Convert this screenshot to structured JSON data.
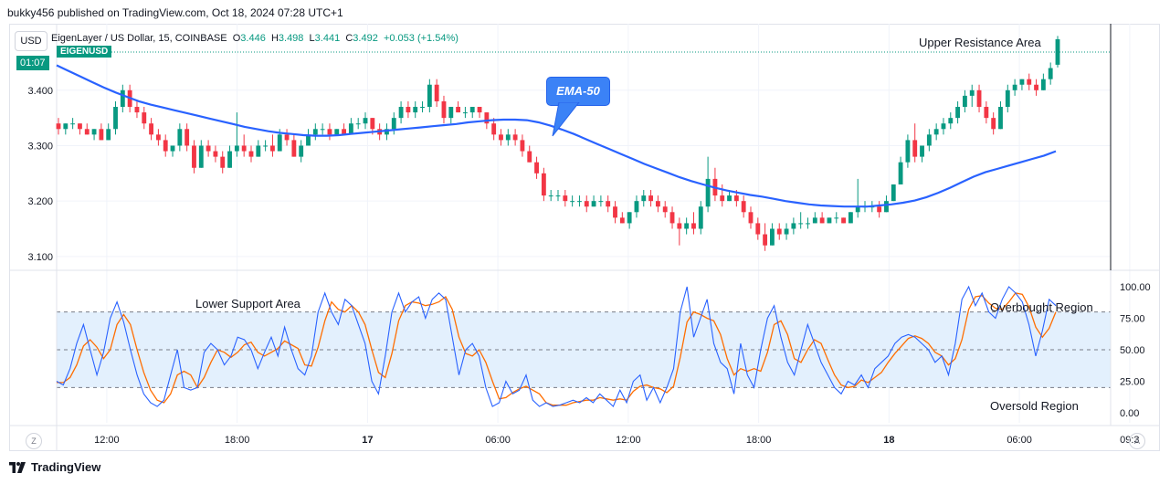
{
  "publisher": "bukky456 published on TradingView.com, Oct 18, 2024 07:28 UTC+1",
  "currency_button": "USD",
  "legend": {
    "title": "EigenLayer / US Dollar, 15, COINBASE",
    "o_label": "O",
    "o": "3.446",
    "h_label": "H",
    "h": "3.498",
    "l_label": "L",
    "l": "3.441",
    "c_label": "C",
    "c": "3.492",
    "change": "+0.053 (+1.54%)"
  },
  "symbol_tag": "EIGENUSD",
  "countdown_tag": "01:07",
  "annotations": {
    "upper_resistance": "Upper Resistance Area",
    "lower_support": "Lower Support Area",
    "overbought": "Overbought Region",
    "oversold": "Oversold Region",
    "ema_callout": "EMA-50"
  },
  "footer_brand": "TradingView",
  "z_button": "Z",
  "a_button": "A",
  "colors": {
    "up": "#089981",
    "down": "#f23645",
    "ema": "#2962ff",
    "stoch_k": "#2962ff",
    "stoch_d": "#ff6d00",
    "band": "#e3f0fd"
  },
  "chart_data": [
    {
      "type": "candlestick",
      "symbol": "EIGENUSD",
      "timeframe": "15",
      "ylim": [
        3.075,
        3.52
      ],
      "y_ticks": [
        "3.400",
        "3.300",
        "3.200",
        "3.100"
      ],
      "y_tick_values": [
        3.4,
        3.3,
        3.2,
        3.1
      ],
      "x_ticks": [
        "12:00",
        "18:00",
        "17",
        "06:00",
        "12:00",
        "18:00",
        "18",
        "06:00",
        "09:3"
      ],
      "ohlc": [
        [
          3.34,
          3.35,
          3.32,
          3.33
        ],
        [
          3.33,
          3.34,
          3.32,
          3.34
        ],
        [
          3.34,
          3.35,
          3.33,
          3.34
        ],
        [
          3.34,
          3.34,
          3.32,
          3.33
        ],
        [
          3.33,
          3.34,
          3.32,
          3.32
        ],
        [
          3.32,
          3.33,
          3.31,
          3.33
        ],
        [
          3.33,
          3.34,
          3.31,
          3.31
        ],
        [
          3.31,
          3.34,
          3.31,
          3.33
        ],
        [
          3.33,
          3.38,
          3.32,
          3.37
        ],
        [
          3.37,
          3.41,
          3.36,
          3.4
        ],
        [
          3.4,
          3.41,
          3.36,
          3.37
        ],
        [
          3.37,
          3.38,
          3.35,
          3.36
        ],
        [
          3.36,
          3.37,
          3.33,
          3.34
        ],
        [
          3.34,
          3.35,
          3.31,
          3.32
        ],
        [
          3.32,
          3.33,
          3.3,
          3.31
        ],
        [
          3.31,
          3.32,
          3.28,
          3.29
        ],
        [
          3.29,
          3.3,
          3.28,
          3.3
        ],
        [
          3.3,
          3.34,
          3.29,
          3.33
        ],
        [
          3.33,
          3.34,
          3.29,
          3.3
        ],
        [
          3.3,
          3.31,
          3.25,
          3.26
        ],
        [
          3.26,
          3.31,
          3.26,
          3.3
        ],
        [
          3.3,
          3.31,
          3.28,
          3.29
        ],
        [
          3.29,
          3.3,
          3.27,
          3.28
        ],
        [
          3.28,
          3.29,
          3.25,
          3.26
        ],
        [
          3.26,
          3.3,
          3.26,
          3.29
        ],
        [
          3.29,
          3.36,
          3.28,
          3.3
        ],
        [
          3.3,
          3.32,
          3.28,
          3.29
        ],
        [
          3.29,
          3.3,
          3.27,
          3.28
        ],
        [
          3.28,
          3.31,
          3.28,
          3.3
        ],
        [
          3.3,
          3.31,
          3.29,
          3.3
        ],
        [
          3.3,
          3.32,
          3.28,
          3.29
        ],
        [
          3.29,
          3.33,
          3.29,
          3.32
        ],
        [
          3.32,
          3.33,
          3.3,
          3.31
        ],
        [
          3.31,
          3.32,
          3.28,
          3.28
        ],
        [
          3.28,
          3.31,
          3.27,
          3.3
        ],
        [
          3.3,
          3.33,
          3.3,
          3.32
        ],
        [
          3.32,
          3.34,
          3.31,
          3.33
        ],
        [
          3.33,
          3.34,
          3.32,
          3.33
        ],
        [
          3.33,
          3.34,
          3.31,
          3.32
        ],
        [
          3.32,
          3.33,
          3.32,
          3.33
        ],
        [
          3.33,
          3.34,
          3.32,
          3.32
        ],
        [
          3.32,
          3.35,
          3.32,
          3.34
        ],
        [
          3.34,
          3.35,
          3.33,
          3.34
        ],
        [
          3.34,
          3.36,
          3.33,
          3.35
        ],
        [
          3.35,
          3.35,
          3.32,
          3.33
        ],
        [
          3.33,
          3.34,
          3.31,
          3.32
        ],
        [
          3.32,
          3.34,
          3.31,
          3.33
        ],
        [
          3.33,
          3.36,
          3.32,
          3.35
        ],
        [
          3.35,
          3.38,
          3.34,
          3.37
        ],
        [
          3.37,
          3.38,
          3.35,
          3.36
        ],
        [
          3.36,
          3.38,
          3.35,
          3.37
        ],
        [
          3.37,
          3.38,
          3.36,
          3.37
        ],
        [
          3.37,
          3.42,
          3.36,
          3.41
        ],
        [
          3.41,
          3.42,
          3.37,
          3.38
        ],
        [
          3.38,
          3.39,
          3.34,
          3.35
        ],
        [
          3.35,
          3.37,
          3.34,
          3.37
        ],
        [
          3.37,
          3.38,
          3.36,
          3.36
        ],
        [
          3.36,
          3.37,
          3.35,
          3.36
        ],
        [
          3.36,
          3.37,
          3.35,
          3.37
        ],
        [
          3.37,
          3.37,
          3.35,
          3.36
        ],
        [
          3.36,
          3.36,
          3.33,
          3.34
        ],
        [
          3.34,
          3.35,
          3.31,
          3.32
        ],
        [
          3.32,
          3.33,
          3.3,
          3.31
        ],
        [
          3.31,
          3.33,
          3.3,
          3.32
        ],
        [
          3.32,
          3.33,
          3.3,
          3.31
        ],
        [
          3.31,
          3.32,
          3.28,
          3.29
        ],
        [
          3.29,
          3.3,
          3.27,
          3.27
        ],
        [
          3.27,
          3.28,
          3.24,
          3.25
        ],
        [
          3.25,
          3.26,
          3.2,
          3.21
        ],
        [
          3.21,
          3.22,
          3.2,
          3.21
        ],
        [
          3.21,
          3.22,
          3.2,
          3.21
        ],
        [
          3.21,
          3.22,
          3.19,
          3.2
        ],
        [
          3.2,
          3.21,
          3.19,
          3.2
        ],
        [
          3.2,
          3.21,
          3.19,
          3.2
        ],
        [
          3.2,
          3.21,
          3.18,
          3.19
        ],
        [
          3.19,
          3.21,
          3.19,
          3.2
        ],
        [
          3.2,
          3.21,
          3.19,
          3.2
        ],
        [
          3.2,
          3.21,
          3.18,
          3.19
        ],
        [
          3.19,
          3.2,
          3.16,
          3.17
        ],
        [
          3.17,
          3.18,
          3.16,
          3.16
        ],
        [
          3.16,
          3.18,
          3.15,
          3.18
        ],
        [
          3.18,
          3.21,
          3.17,
          3.2
        ],
        [
          3.2,
          3.22,
          3.19,
          3.21
        ],
        [
          3.21,
          3.22,
          3.19,
          3.2
        ],
        [
          3.2,
          3.21,
          3.18,
          3.19
        ],
        [
          3.19,
          3.2,
          3.17,
          3.18
        ],
        [
          3.18,
          3.19,
          3.15,
          3.16
        ],
        [
          3.16,
          3.17,
          3.12,
          3.15
        ],
        [
          3.15,
          3.17,
          3.14,
          3.16
        ],
        [
          3.16,
          3.18,
          3.14,
          3.15
        ],
        [
          3.15,
          3.2,
          3.14,
          3.19
        ],
        [
          3.19,
          3.28,
          3.18,
          3.24
        ],
        [
          3.24,
          3.26,
          3.2,
          3.21
        ],
        [
          3.21,
          3.23,
          3.19,
          3.2
        ],
        [
          3.2,
          3.22,
          3.2,
          3.21
        ],
        [
          3.21,
          3.22,
          3.19,
          3.2
        ],
        [
          3.2,
          3.21,
          3.17,
          3.18
        ],
        [
          3.18,
          3.19,
          3.15,
          3.16
        ],
        [
          3.16,
          3.17,
          3.13,
          3.14
        ],
        [
          3.14,
          3.16,
          3.11,
          3.12
        ],
        [
          3.12,
          3.16,
          3.12,
          3.15
        ],
        [
          3.15,
          3.16,
          3.13,
          3.14
        ],
        [
          3.14,
          3.16,
          3.13,
          3.15
        ],
        [
          3.15,
          3.17,
          3.14,
          3.16
        ],
        [
          3.16,
          3.18,
          3.15,
          3.16
        ],
        [
          3.16,
          3.17,
          3.15,
          3.16
        ],
        [
          3.16,
          3.18,
          3.16,
          3.17
        ],
        [
          3.17,
          3.18,
          3.16,
          3.16
        ],
        [
          3.16,
          3.17,
          3.16,
          3.17
        ],
        [
          3.17,
          3.18,
          3.16,
          3.17
        ],
        [
          3.17,
          3.17,
          3.16,
          3.16
        ],
        [
          3.16,
          3.18,
          3.16,
          3.18
        ],
        [
          3.18,
          3.24,
          3.17,
          3.19
        ],
        [
          3.19,
          3.2,
          3.18,
          3.19
        ],
        [
          3.19,
          3.2,
          3.18,
          3.19
        ],
        [
          3.19,
          3.2,
          3.17,
          3.18
        ],
        [
          3.18,
          3.21,
          3.18,
          3.2
        ],
        [
          3.2,
          3.23,
          3.2,
          3.23
        ],
        [
          3.23,
          3.28,
          3.23,
          3.27
        ],
        [
          3.27,
          3.32,
          3.26,
          3.31
        ],
        [
          3.31,
          3.34,
          3.27,
          3.28
        ],
        [
          3.28,
          3.3,
          3.27,
          3.3
        ],
        [
          3.3,
          3.33,
          3.29,
          3.32
        ],
        [
          3.32,
          3.34,
          3.31,
          3.33
        ],
        [
          3.33,
          3.35,
          3.32,
          3.34
        ],
        [
          3.34,
          3.36,
          3.33,
          3.35
        ],
        [
          3.35,
          3.38,
          3.34,
          3.37
        ],
        [
          3.37,
          3.4,
          3.36,
          3.39
        ],
        [
          3.39,
          3.41,
          3.37,
          3.4
        ],
        [
          3.4,
          3.41,
          3.36,
          3.37
        ],
        [
          3.37,
          3.38,
          3.34,
          3.35
        ],
        [
          3.35,
          3.36,
          3.32,
          3.33
        ],
        [
          3.33,
          3.38,
          3.33,
          3.37
        ],
        [
          3.37,
          3.41,
          3.36,
          3.4
        ],
        [
          3.4,
          3.42,
          3.39,
          3.41
        ],
        [
          3.41,
          3.42,
          3.4,
          3.42
        ],
        [
          3.42,
          3.43,
          3.4,
          3.41
        ],
        [
          3.41,
          3.42,
          3.39,
          3.4
        ],
        [
          3.4,
          3.43,
          3.4,
          3.42
        ],
        [
          3.42,
          3.45,
          3.41,
          3.44
        ],
        [
          3.446,
          3.498,
          3.441,
          3.492
        ]
      ],
      "ema50": [
        3.445,
        3.435,
        3.425,
        3.415,
        3.405,
        3.396,
        3.388,
        3.38,
        3.374,
        3.369,
        3.364,
        3.359,
        3.354,
        3.349,
        3.344,
        3.339,
        3.334,
        3.33,
        3.326,
        3.323,
        3.321,
        3.319,
        3.318,
        3.318,
        3.319,
        3.321,
        3.323,
        3.325,
        3.327,
        3.329,
        3.331,
        3.333,
        3.335,
        3.337,
        3.339,
        3.342,
        3.344,
        3.346,
        3.347,
        3.347,
        3.346,
        3.342,
        3.336,
        3.329,
        3.321,
        3.312,
        3.303,
        3.294,
        3.285,
        3.276,
        3.267,
        3.259,
        3.251,
        3.243,
        3.236,
        3.23,
        3.224,
        3.219,
        3.215,
        3.211,
        3.208,
        3.204,
        3.2,
        3.197,
        3.194,
        3.192,
        3.191,
        3.19,
        3.19,
        3.19,
        3.192,
        3.194,
        3.197,
        3.201,
        3.207,
        3.215,
        3.224,
        3.234,
        3.244,
        3.252,
        3.258,
        3.264,
        3.27,
        3.276,
        3.282,
        3.29
      ]
    },
    {
      "type": "line",
      "name": "Stochastic",
      "ylim": [
        0,
        100
      ],
      "y_ticks": [
        "100.00",
        "75.00",
        "50.00",
        "25.00",
        "0.00"
      ],
      "y_tick_values": [
        100,
        75,
        50,
        25,
        0
      ],
      "levels": [
        80,
        50,
        20
      ],
      "series_k": [
        25,
        22,
        35,
        55,
        70,
        50,
        30,
        48,
        75,
        88,
        72,
        50,
        30,
        15,
        8,
        5,
        10,
        30,
        50,
        20,
        18,
        20,
        48,
        55,
        50,
        38,
        45,
        60,
        58,
        50,
        35,
        48,
        60,
        45,
        68,
        50,
        35,
        30,
        45,
        80,
        95,
        80,
        70,
        90,
        85,
        70,
        55,
        25,
        15,
        45,
        80,
        95,
        80,
        88,
        92,
        75,
        90,
        95,
        90,
        60,
        30,
        50,
        55,
        45,
        20,
        5,
        8,
        25,
        15,
        18,
        30,
        10,
        5,
        8,
        5,
        6,
        8,
        10,
        8,
        12,
        8,
        15,
        10,
        5,
        18,
        8,
        25,
        30,
        10,
        20,
        8,
        20,
        35,
        80,
        100,
        60,
        75,
        90,
        55,
        40,
        35,
        15,
        55,
        30,
        20,
        50,
        75,
        85,
        60,
        40,
        30,
        50,
        70,
        55,
        40,
        30,
        20,
        15,
        25,
        22,
        30,
        20,
        35,
        40,
        45,
        55,
        60,
        62,
        60,
        55,
        50,
        40,
        45,
        30,
        55,
        90,
        100,
        85,
        95,
        80,
        75,
        90,
        100,
        95,
        88,
        70,
        45,
        65,
        90,
        85
      ],
      "series_d": [
        24,
        24,
        28,
        38,
        53,
        58,
        52,
        43,
        50,
        70,
        78,
        70,
        50,
        32,
        18,
        10,
        8,
        15,
        30,
        33,
        30,
        20,
        28,
        40,
        50,
        48,
        44,
        48,
        54,
        56,
        48,
        45,
        48,
        51,
        57,
        54,
        51,
        38,
        37,
        52,
        73,
        88,
        82,
        80,
        85,
        80,
        70,
        50,
        32,
        28,
        47,
        73,
        85,
        88,
        87,
        85,
        86,
        88,
        92,
        82,
        60,
        47,
        45,
        50,
        40,
        25,
        11,
        12,
        16,
        19,
        21,
        18,
        15,
        8,
        6,
        6,
        6,
        8,
        9,
        10,
        10,
        12,
        11,
        10,
        11,
        10,
        17,
        21,
        22,
        20,
        19,
        16,
        21,
        44,
        72,
        80,
        78,
        75,
        73,
        62,
        43,
        30,
        35,
        33,
        35,
        33,
        48,
        70,
        73,
        62,
        43,
        40,
        50,
        58,
        55,
        42,
        30,
        22,
        20,
        21,
        26,
        24,
        28,
        32,
        40,
        47,
        53,
        59,
        61,
        59,
        55,
        48,
        45,
        38,
        43,
        58,
        82,
        92,
        93,
        87,
        83,
        82,
        88,
        95,
        94,
        84,
        68,
        60,
        67,
        80
      ]
    }
  ]
}
